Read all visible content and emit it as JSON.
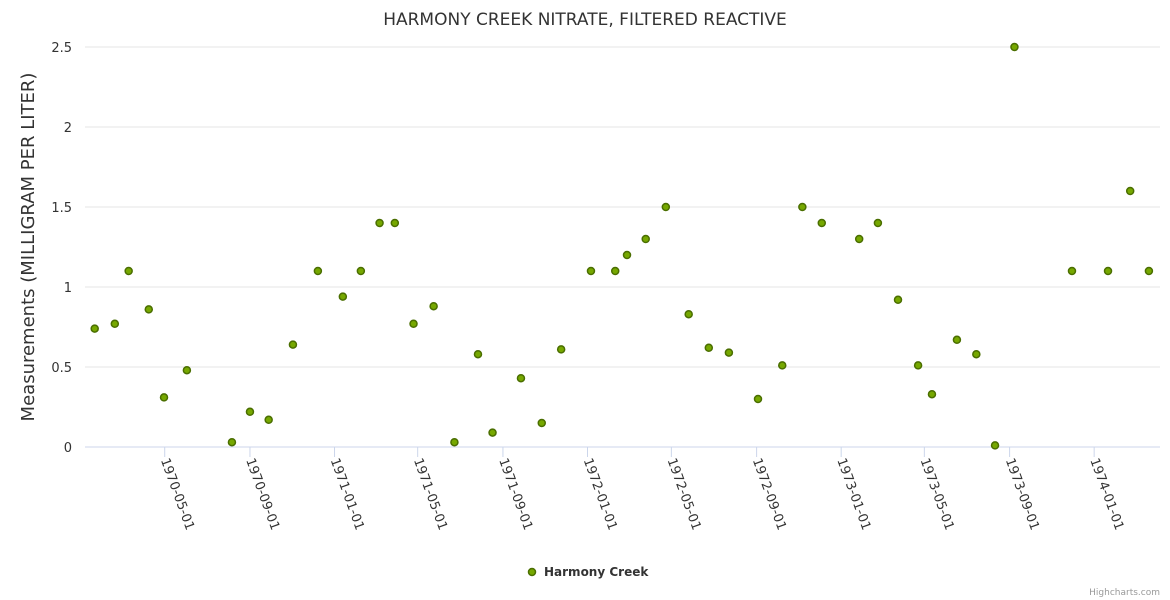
{
  "chart_data": {
    "type": "scatter",
    "title": "HARMONY CREEK NITRATE, FILTERED REACTIVE",
    "xlabel": "",
    "ylabel": "Measurements (MILLIGRAM PER LITER)",
    "ylim": [
      0,
      2.5
    ],
    "xlim": [
      "1970-01-06",
      "1974-04-06"
    ],
    "yticks": [
      "0",
      "0.5",
      "1",
      "1.5",
      "2",
      "2.5"
    ],
    "ytick_values": [
      0,
      0.5,
      1,
      1.5,
      2,
      2.5
    ],
    "xticks": [
      "1970-05-01",
      "1970-09-01",
      "1971-01-01",
      "1971-05-01",
      "1971-09-01",
      "1972-01-01",
      "1972-05-01",
      "1972-09-01",
      "1973-01-01",
      "1973-05-01",
      "1973-09-01",
      "1974-01-01"
    ],
    "grid": "horizontal",
    "legend_position": "bottom-center",
    "color": "#76a800",
    "credits": "Highcharts.com",
    "series": [
      {
        "name": "Harmony Creek",
        "x": [
          "1970-01-20",
          "1970-02-18",
          "1970-03-10",
          "1970-04-08",
          "1970-04-30",
          "1970-06-02",
          "1970-08-06",
          "1970-09-01",
          "1970-09-28",
          "1970-11-02",
          "1970-12-08",
          "1971-01-13",
          "1971-02-08",
          "1971-03-07",
          "1971-03-29",
          "1971-04-25",
          "1971-05-24",
          "1971-06-23",
          "1971-07-27",
          "1971-08-17",
          "1971-09-27",
          "1971-10-27",
          "1971-11-24",
          "1972-01-06",
          "1972-02-10",
          "1972-02-27",
          "1972-03-25",
          "1972-04-23",
          "1972-05-26",
          "1972-06-24",
          "1972-07-23",
          "1972-09-03",
          "1972-10-08",
          "1972-11-06",
          "1972-12-04",
          "1973-01-27",
          "1973-02-23",
          "1973-03-24",
          "1973-04-22",
          "1973-05-12",
          "1973-06-17",
          "1973-07-15",
          "1973-08-11",
          "1973-09-08",
          "1973-11-30",
          "1974-01-21",
          "1974-02-22",
          "1974-03-21"
        ],
        "y": [
          0.74,
          0.77,
          1.1,
          0.86,
          0.31,
          0.48,
          0.03,
          0.22,
          0.17,
          0.64,
          1.1,
          0.94,
          1.1,
          1.4,
          1.4,
          0.77,
          0.88,
          0.03,
          0.58,
          0.09,
          0.43,
          0.15,
          0.61,
          1.1,
          1.1,
          1.2,
          1.3,
          1.5,
          0.83,
          0.62,
          0.59,
          0.3,
          0.51,
          1.5,
          1.4,
          1.3,
          1.4,
          0.92,
          0.51,
          0.33,
          0.67,
          0.58,
          0.01,
          2.5,
          1.1,
          1.1,
          1.6,
          1.1
        ]
      }
    ]
  }
}
